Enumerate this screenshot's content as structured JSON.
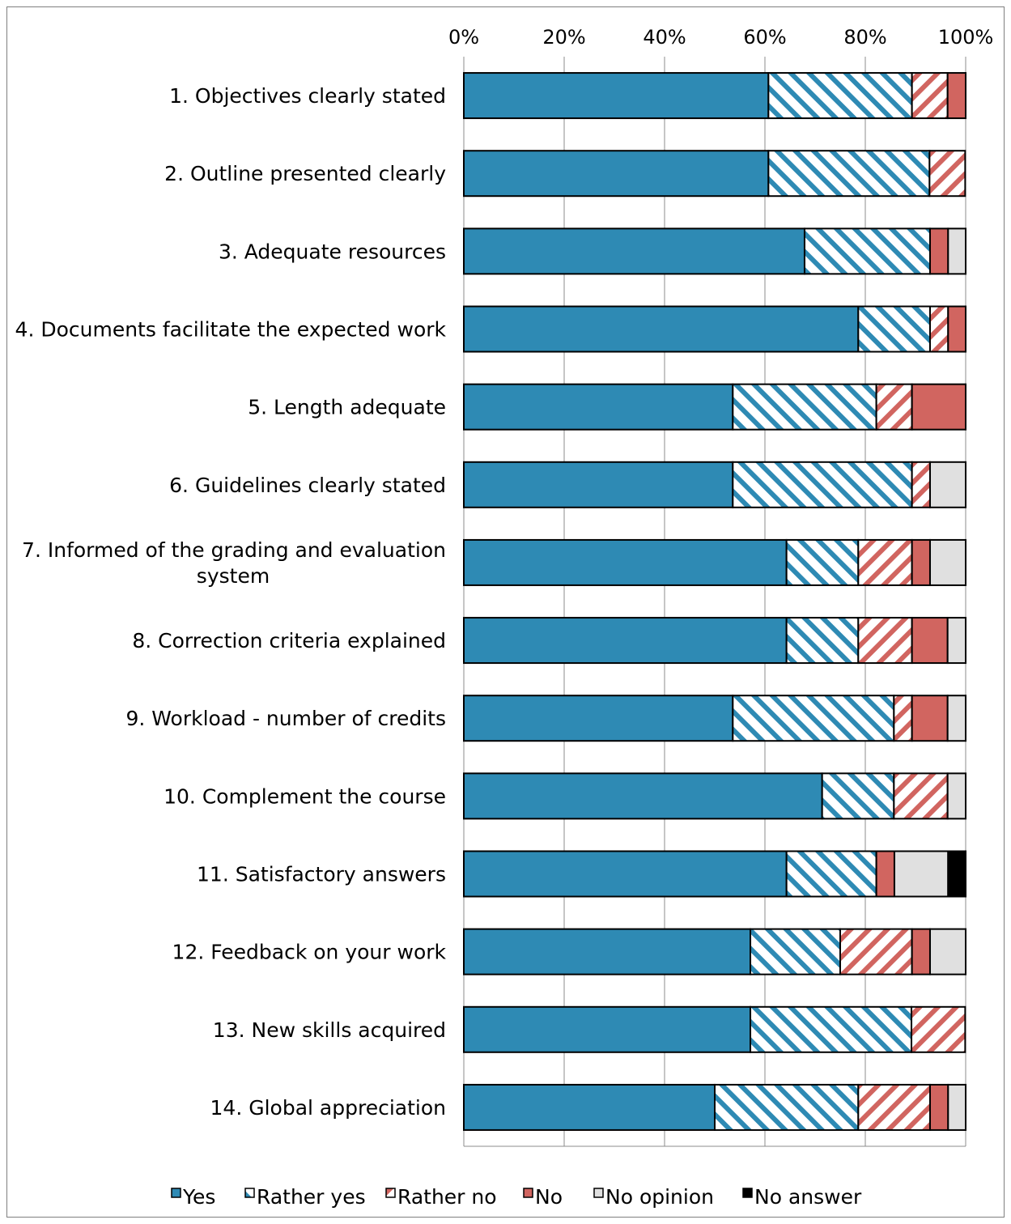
{
  "chart_data": {
    "type": "bar",
    "orientation": "horizontal",
    "stacked": true,
    "title": "",
    "xlabel": "",
    "ylabel": "",
    "xlim": [
      0,
      100
    ],
    "x_ticks": [
      "0%",
      "20%",
      "40%",
      "60%",
      "80%",
      "100%"
    ],
    "x_axis_position": "top",
    "grid": true,
    "legend_position": "bottom",
    "categories": [
      "1. Objectives clearly stated",
      "2. Outline presented clearly",
      "3. Adequate resources",
      "4. Documents facilitate the expected work",
      "5. Length adequate",
      "6. Guidelines clearly stated",
      "7. Informed of the grading and evaluation system",
      "8. Correction criteria explained",
      "9. Workload - number of credits",
      "10. Complement the course",
      "11. Satisfactory answers",
      "12. Feedback on your work",
      "13. New skills acquired",
      "14. Global appreciation"
    ],
    "series": [
      {
        "name": "Yes",
        "color": "#2e8ab4",
        "pattern": "solid",
        "values": [
          60.7,
          60.7,
          67.9,
          78.6,
          53.6,
          53.6,
          64.3,
          64.3,
          53.6,
          71.4,
          64.3,
          57.1,
          57.1,
          50.0
        ]
      },
      {
        "name": "Rather yes",
        "color": "#2e8ab4",
        "pattern": "hatch",
        "values": [
          28.6,
          32.1,
          25.0,
          14.3,
          28.6,
          35.7,
          14.3,
          14.3,
          32.1,
          14.3,
          17.9,
          17.9,
          32.1,
          28.6
        ]
      },
      {
        "name": "Rather no",
        "color": "#d16560",
        "pattern": "hatch",
        "values": [
          7.1,
          7.1,
          0.0,
          3.6,
          7.1,
          3.6,
          10.7,
          10.7,
          3.6,
          10.7,
          0.0,
          14.3,
          10.7,
          14.3
        ]
      },
      {
        "name": "No",
        "color": "#d16560",
        "pattern": "solid",
        "values": [
          3.6,
          0.0,
          3.6,
          3.6,
          10.7,
          0.0,
          3.6,
          7.1,
          7.1,
          0.0,
          3.6,
          3.6,
          0.0,
          3.6
        ]
      },
      {
        "name": "No opinion",
        "color": "#e0e0e0",
        "pattern": "solid",
        "values": [
          0.0,
          0.0,
          3.6,
          0.0,
          0.0,
          7.1,
          7.1,
          3.6,
          3.6,
          3.6,
          10.7,
          7.1,
          0.0,
          3.6
        ]
      },
      {
        "name": "No answer",
        "color": "#000000",
        "pattern": "solid",
        "values": [
          0.0,
          0.0,
          0.0,
          0.0,
          0.0,
          0.0,
          0.0,
          0.0,
          0.0,
          0.0,
          3.6,
          0.0,
          0.0,
          0.0
        ]
      }
    ]
  }
}
